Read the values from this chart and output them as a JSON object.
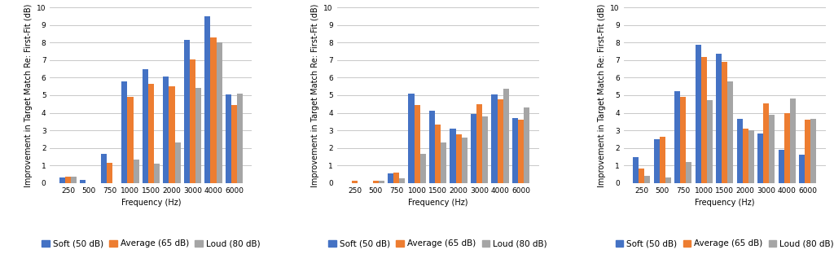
{
  "categories": [
    "250",
    "500",
    "750",
    "1000",
    "1500",
    "2000",
    "3000",
    "4000",
    "6000"
  ],
  "chart1": {
    "soft": [
      0.3,
      0.15,
      1.65,
      5.8,
      6.5,
      6.05,
      8.15,
      9.5,
      5.05
    ],
    "average": [
      0.35,
      0.0,
      1.15,
      4.9,
      5.65,
      5.5,
      7.05,
      8.3,
      4.45
    ],
    "loud": [
      0.35,
      0.0,
      0.0,
      1.35,
      1.1,
      2.3,
      5.4,
      8.0,
      5.1
    ]
  },
  "chart2": {
    "soft": [
      0.0,
      0.0,
      0.55,
      5.1,
      4.1,
      3.1,
      3.95,
      5.05,
      3.7
    ],
    "average": [
      0.1,
      0.1,
      0.6,
      4.45,
      3.35,
      2.75,
      4.5,
      4.75,
      3.6
    ],
    "loud": [
      0.0,
      0.1,
      0.28,
      1.65,
      2.3,
      2.6,
      3.8,
      5.35,
      4.3
    ]
  },
  "chart3": {
    "soft": [
      1.45,
      2.5,
      5.25,
      7.9,
      7.35,
      3.65,
      2.8,
      1.9,
      1.6
    ],
    "average": [
      0.8,
      2.65,
      4.9,
      7.2,
      6.9,
      3.1,
      4.55,
      4.0,
      3.6
    ],
    "loud": [
      0.38,
      0.3,
      1.2,
      4.7,
      5.8,
      3.0,
      3.9,
      4.8,
      3.65
    ]
  },
  "ylabel_top": "Improvement in Target Match Re: First-Fit (dB)",
  "xlabel": "Frequency (Hz)",
  "ylim": [
    0,
    10
  ],
  "yticks": [
    0,
    1,
    2,
    3,
    4,
    5,
    6,
    7,
    8,
    9,
    10
  ],
  "legend_labels": [
    "Soft (50 dB)",
    "Average (65 dB)",
    "Loud (80 dB)"
  ],
  "bar_colors": [
    "#4472C4",
    "#ED7D31",
    "#A5A5A5"
  ],
  "background_color": "#FFFFFF",
  "grid_color": "#BFBFBF",
  "bar_width": 0.28,
  "fontsize_axis_label": 7.0,
  "fontsize_tick": 6.5,
  "fontsize_legend": 7.5
}
